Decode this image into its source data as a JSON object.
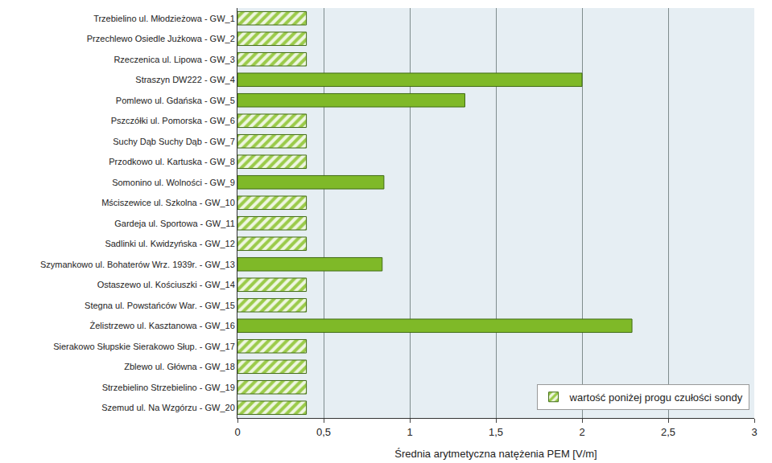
{
  "chart_data": {
    "type": "bar",
    "orientation": "horizontal",
    "xlabel": "Średnia arytmetyczna natężenia PEM [V/m]",
    "categories": [
      "Trzebielino ul. Młodzieżowa - GW_1",
      "Przechlewo Osiedle Jużkowa - GW_2",
      "Rzeczenica ul. Lipowa - GW_3",
      "Straszyn DW222 - GW_4",
      "Pomlewo ul. Gdańska - GW_5",
      "Pszczółki ul. Pomorska - GW_6",
      "Suchy Dąb Suchy Dąb - GW_7",
      "Przodkowo ul. Kartuska - GW_8",
      "Somonino ul. Wolności - GW_9",
      "Mściszewice ul. Szkolna - GW_10",
      "Gardeja ul. Sportowa - GW_11",
      "Sadlinki ul. Kwidzyńska - GW_12",
      "Szymankowo ul. Bohaterów Wrz. 1939r. - GW_13",
      "Ostaszewo ul. Kościuszki - GW_14",
      "Stegna ul. Powstańców War. - GW_15",
      "Żelistrzewo ul. Kasztanowa - GW_16",
      "Sierakowo Słupskie Sierakowo Słup. - GW_17",
      "Zblewo ul. Główna - GW_18",
      "Strzebielino Strzebielino - GW_19",
      "Szemud ul. Na Wzgórzu - GW_20"
    ],
    "series": [
      {
        "name": "wartość poniżej progu czułości sondy",
        "color": "#9bcb4a",
        "marker": "hatch",
        "values": [
          0.4,
          0.4,
          0.4,
          null,
          null,
          0.4,
          0.4,
          0.4,
          null,
          0.4,
          0.4,
          0.4,
          null,
          0.4,
          0.4,
          null,
          0.4,
          0.4,
          0.4,
          0.4
        ]
      },
      {
        "color": "#7fb928",
        "values": [
          null,
          null,
          null,
          2.0,
          1.32,
          null,
          null,
          null,
          0.85,
          null,
          null,
          null,
          0.84,
          null,
          null,
          2.29,
          null,
          null,
          null,
          null
        ]
      }
    ],
    "xlim": [
      0,
      3
    ],
    "xticks": [
      0,
      {
        "value": 0.5,
        "label": "0,5"
      },
      1,
      {
        "value": 1.5,
        "label": "1,5"
      },
      2,
      {
        "value": 2.5,
        "label": "2,5"
      },
      3
    ],
    "grid": true,
    "legend": "lower right"
  }
}
